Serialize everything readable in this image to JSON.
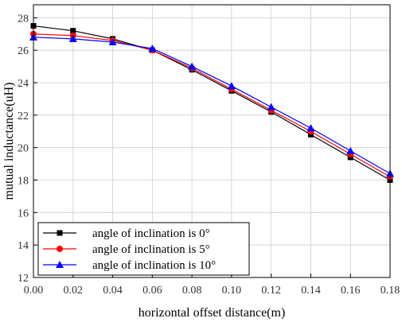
{
  "chart_data": {
    "type": "line",
    "title": "",
    "xlabel": "horizontal offset distance(m)",
    "ylabel": "mutual inductance(uH)",
    "xlim": [
      0,
      0.18
    ],
    "ylim": [
      12,
      28.8
    ],
    "x_ticks": [
      "0.00",
      "0.02",
      "0.04",
      "0.06",
      "0.08",
      "0.10",
      "0.12",
      "0.14",
      "0.16",
      "0.18"
    ],
    "y_ticks": [
      "12",
      "14",
      "16",
      "18",
      "20",
      "22",
      "24",
      "26",
      "28"
    ],
    "grid": true,
    "legend_position": "bottom-left",
    "x": [
      0.0,
      0.02,
      0.04,
      0.06,
      0.08,
      0.1,
      0.12,
      0.14,
      0.16,
      0.18
    ],
    "series": [
      {
        "name": "angle of inclination is  0°",
        "color": "#000000",
        "marker": "square",
        "values": [
          27.5,
          27.2,
          26.7,
          26.0,
          24.8,
          23.5,
          22.2,
          20.8,
          19.4,
          18.0
        ]
      },
      {
        "name": "angle of inclination is  5°",
        "color": "#ff0000",
        "marker": "circle",
        "values": [
          27.0,
          26.9,
          26.6,
          26.0,
          24.9,
          23.6,
          22.3,
          21.0,
          19.6,
          18.2
        ]
      },
      {
        "name": "angle of inclination is  10°",
        "color": "#0000ff",
        "marker": "triangle",
        "values": [
          26.8,
          26.7,
          26.5,
          26.1,
          25.0,
          23.8,
          22.5,
          21.2,
          19.8,
          18.4
        ]
      }
    ]
  }
}
